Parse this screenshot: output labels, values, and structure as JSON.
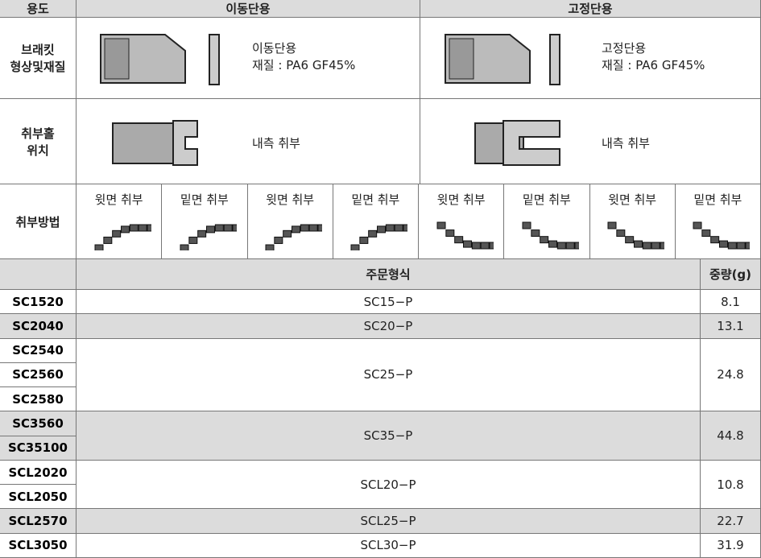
{
  "header": {
    "usage": "용도",
    "moving": "이동단용",
    "fixed": "고정단용"
  },
  "bracket": {
    "label": [
      "브래킷",
      "형상및재질"
    ],
    "moving": [
      "이동단용",
      "재질 : PA6 GF45%"
    ],
    "fixed": [
      "고정단용",
      "재질 : PA6 GF45%"
    ]
  },
  "hole": {
    "label": [
      "취부홀",
      "위치"
    ],
    "moving": "내측 취부",
    "fixed": "내측 취부"
  },
  "mounting": {
    "label": "취부방법",
    "options": [
      "윗면 취부",
      "밑면 취부",
      "윗면 취부",
      "밑면 취부",
      "윗면 취부",
      "밑면 취부",
      "윗면 취부",
      "밑면 취부"
    ]
  },
  "order_table": {
    "header": [
      "주문형식",
      "중량(g)"
    ],
    "rows": [
      {
        "models": [
          "SC1520"
        ],
        "order": "SC15−P",
        "weight": "8.1"
      },
      {
        "models": [
          "SC2040"
        ],
        "order": "SC20−P",
        "weight": "13.1"
      },
      {
        "models": [
          "SC2540",
          "SC2560",
          "SC2580"
        ],
        "order": "SC25−P",
        "weight": "24.8"
      },
      {
        "models": [
          "SC3560",
          "SC35100"
        ],
        "order": "SC35−P",
        "weight": "44.8"
      },
      {
        "models": [
          "SCL2020",
          "SCL2050"
        ],
        "order": "SCL20−P",
        "weight": "10.8"
      },
      {
        "models": [
          "SCL2570"
        ],
        "order": "SCL25−P",
        "weight": "22.7"
      },
      {
        "models": [
          "SCL3050"
        ],
        "order": "SCL30−P",
        "weight": "31.9"
      }
    ]
  }
}
